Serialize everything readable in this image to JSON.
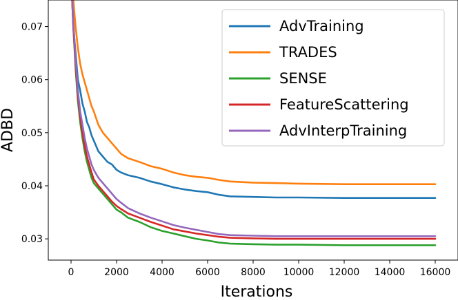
{
  "chart_data": {
    "type": "line",
    "title": "",
    "xlabel": "Iterations",
    "ylabel": "ADBD",
    "xlim": [
      -1000,
      17000
    ],
    "ylim": [
      0.026,
      0.075
    ],
    "xticks": [
      "0",
      "2000",
      "4000",
      "6000",
      "8000",
      "10000",
      "12000",
      "14000",
      "16000"
    ],
    "yticks": [
      "0.03",
      "0.04",
      "0.05",
      "0.06",
      "0.07"
    ],
    "grid": false,
    "legend_position": "top-right",
    "series": [
      {
        "name": "AdvTraining",
        "color": "#1f77b4",
        "x": [
          0,
          100,
          200,
          300,
          400,
          500,
          600,
          700,
          800,
          900,
          1000,
          1200,
          1400,
          1600,
          1800,
          2000,
          2200,
          2500,
          3000,
          3500,
          4000,
          4500,
          5000,
          5500,
          6000,
          6500,
          7000,
          8000,
          9000,
          10000,
          12000,
          14000,
          16000
        ],
        "y": [
          0.08,
          0.07,
          0.065,
          0.06,
          0.058,
          0.0555,
          0.054,
          0.052,
          0.051,
          0.0495,
          0.0485,
          0.0465,
          0.0455,
          0.0445,
          0.044,
          0.043,
          0.0425,
          0.042,
          0.0415,
          0.0408,
          0.0403,
          0.0397,
          0.0393,
          0.039,
          0.0388,
          0.0383,
          0.038,
          0.0379,
          0.0378,
          0.0378,
          0.0377,
          0.0377,
          0.0377
        ]
      },
      {
        "name": "TRADES",
        "color": "#ff7f0e",
        "x": [
          0,
          100,
          200,
          300,
          400,
          500,
          600,
          700,
          800,
          900,
          1000,
          1200,
          1400,
          1600,
          1800,
          2000,
          2200,
          2500,
          3000,
          3500,
          4000,
          4500,
          5000,
          5500,
          6000,
          6500,
          7000,
          8000,
          9000,
          10000,
          12000,
          14000,
          16000
        ],
        "y": [
          0.085,
          0.075,
          0.07,
          0.066,
          0.063,
          0.061,
          0.0595,
          0.058,
          0.0565,
          0.055,
          0.054,
          0.0515,
          0.05,
          0.049,
          0.048,
          0.047,
          0.046,
          0.0452,
          0.0445,
          0.0437,
          0.0432,
          0.0425,
          0.042,
          0.0417,
          0.0415,
          0.0411,
          0.0408,
          0.0406,
          0.0405,
          0.0404,
          0.0403,
          0.0403,
          0.0403
        ]
      },
      {
        "name": "SENSE",
        "color": "#2ca02c",
        "x": [
          0,
          100,
          200,
          300,
          400,
          500,
          600,
          700,
          800,
          900,
          1000,
          1200,
          1400,
          1600,
          1800,
          2000,
          2200,
          2500,
          3000,
          3500,
          4000,
          4500,
          5000,
          5500,
          6000,
          6500,
          7000,
          8000,
          9000,
          10000,
          12000,
          14000,
          16000
        ],
        "y": [
          0.08,
          0.07,
          0.062,
          0.056,
          0.052,
          0.049,
          0.0465,
          0.0445,
          0.043,
          0.0415,
          0.0405,
          0.0395,
          0.0385,
          0.0375,
          0.0365,
          0.0355,
          0.035,
          0.034,
          0.0332,
          0.0322,
          0.0315,
          0.031,
          0.0305,
          0.03,
          0.0297,
          0.0293,
          0.0291,
          0.029,
          0.0289,
          0.0289,
          0.0288,
          0.0288,
          0.0288
        ]
      },
      {
        "name": "FeatureScattering",
        "color": "#d62728",
        "x": [
          0,
          100,
          200,
          300,
          400,
          500,
          600,
          700,
          800,
          900,
          1000,
          1200,
          1400,
          1600,
          1800,
          2000,
          2200,
          2500,
          3000,
          3500,
          4000,
          4500,
          5000,
          5500,
          6000,
          6500,
          7000,
          8000,
          9000,
          10000,
          12000,
          14000,
          16000
        ],
        "y": [
          0.08,
          0.07,
          0.063,
          0.057,
          0.053,
          0.05,
          0.0475,
          0.0455,
          0.044,
          0.0425,
          0.0412,
          0.04,
          0.039,
          0.038,
          0.037,
          0.0362,
          0.0356,
          0.0348,
          0.034,
          0.0332,
          0.0325,
          0.0318,
          0.0314,
          0.031,
          0.0307,
          0.0304,
          0.0302,
          0.0301,
          0.03,
          0.03,
          0.03,
          0.03,
          0.03
        ]
      },
      {
        "name": "AdvInterpTraining",
        "color": "#9467bd",
        "x": [
          0,
          100,
          200,
          300,
          400,
          500,
          600,
          700,
          800,
          900,
          1000,
          1200,
          1400,
          1600,
          1800,
          2000,
          2200,
          2500,
          3000,
          3500,
          4000,
          4500,
          5000,
          5500,
          6000,
          6500,
          7000,
          8000,
          9000,
          10000,
          12000,
          14000,
          16000
        ],
        "y": [
          0.08,
          0.071,
          0.064,
          0.058,
          0.054,
          0.0515,
          0.049,
          0.047,
          0.0455,
          0.044,
          0.043,
          0.0415,
          0.0405,
          0.0395,
          0.0385,
          0.0375,
          0.0368,
          0.0358,
          0.0348,
          0.034,
          0.0333,
          0.0326,
          0.0321,
          0.0317,
          0.0313,
          0.0309,
          0.0307,
          0.0306,
          0.0305,
          0.0305,
          0.0305,
          0.0305,
          0.0305
        ]
      }
    ]
  }
}
